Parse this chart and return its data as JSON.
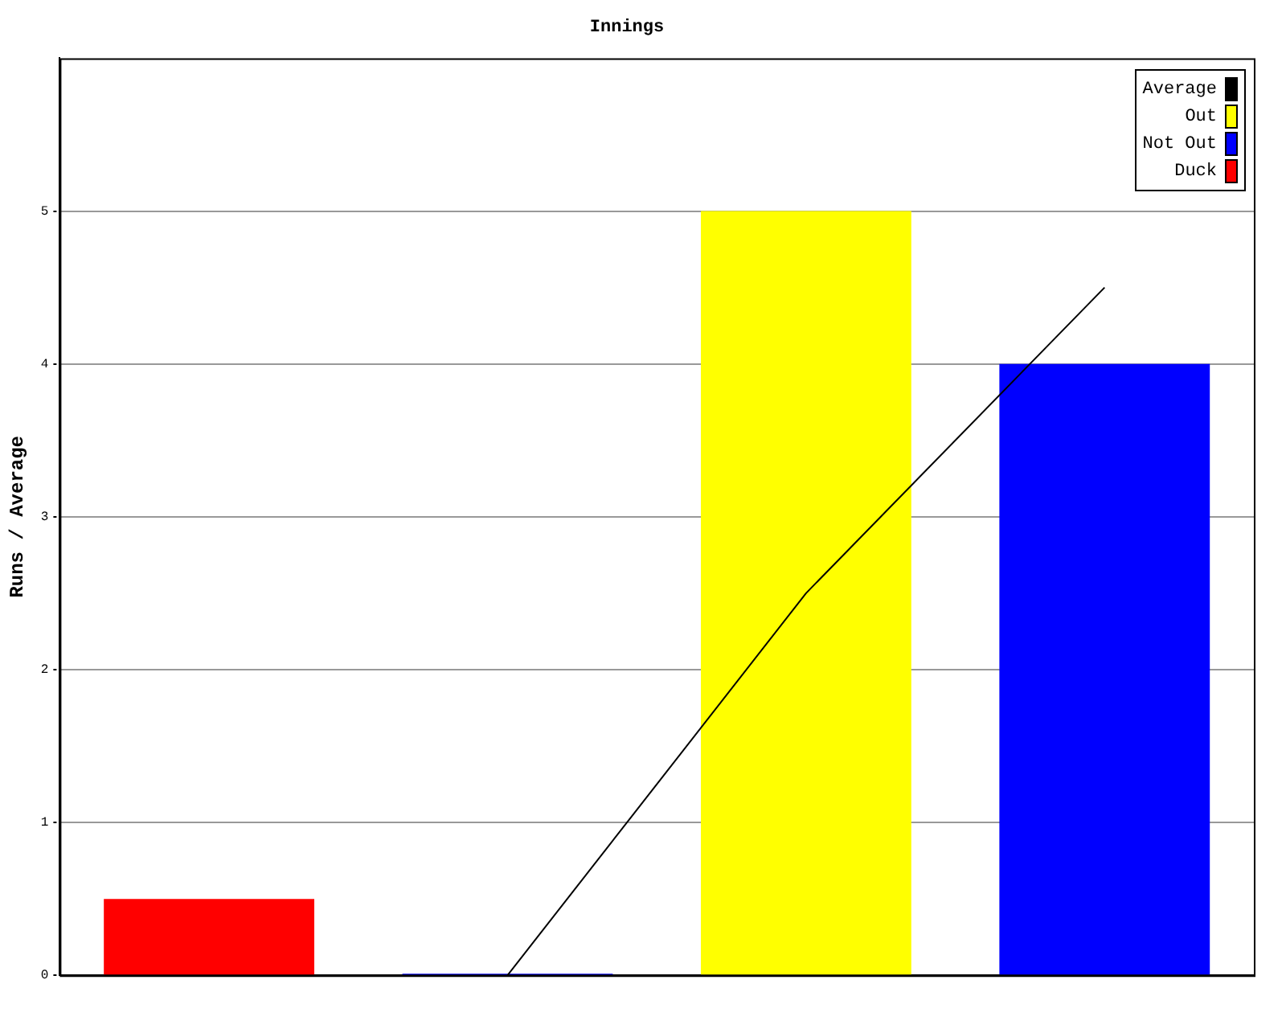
{
  "chart_data": {
    "type": "bar",
    "title": "Innings",
    "ylabel": "Runs / Average",
    "categories": [
      null,
      null,
      null,
      null
    ],
    "series": [
      {
        "name": "Average",
        "type": "line",
        "color": "#000000",
        "values": [
          null,
          0,
          2.5,
          4.5
        ]
      },
      {
        "name": "Out",
        "color": "#ffff00",
        "values": [
          null,
          null,
          5,
          null
        ]
      },
      {
        "name": "Not Out",
        "color": "#0000ff",
        "values": [
          null,
          0.01,
          null,
          4
        ]
      },
      {
        "name": "Duck",
        "color": "#ff0000",
        "values": [
          0.5,
          null,
          null,
          null
        ]
      }
    ],
    "stacked": true,
    "ylim": [
      0,
      6
    ],
    "yticks": [
      0,
      1,
      2,
      3,
      4,
      5
    ],
    "grid": "y",
    "legend": "top right",
    "marker": "none"
  }
}
